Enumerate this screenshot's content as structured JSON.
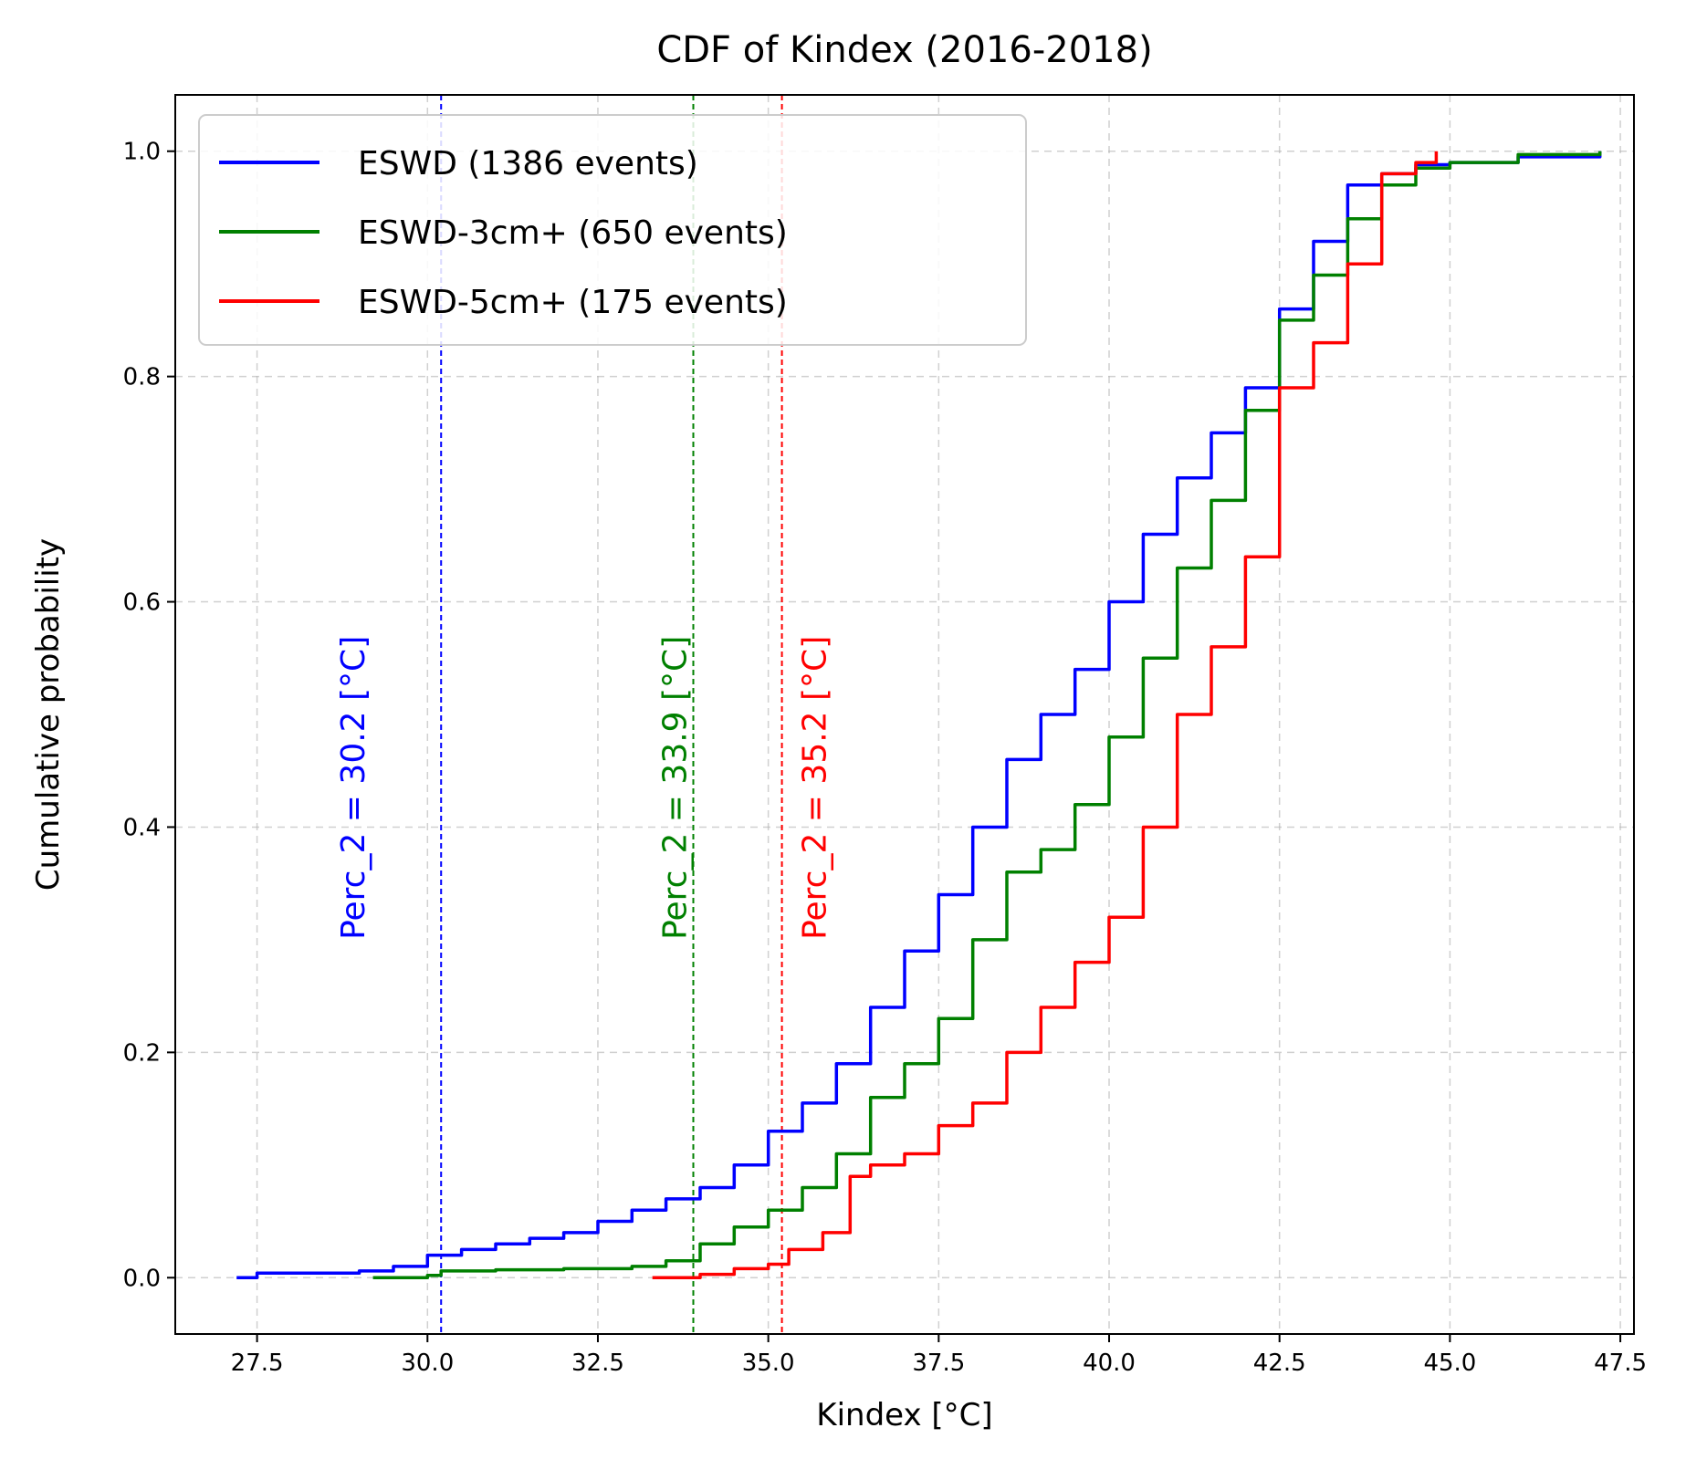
{
  "chart_data": {
    "type": "line",
    "title": "CDF of Kindex (2016-2018)",
    "xlabel": "Kindex [°C]",
    "ylabel": "Cumulative probability",
    "xlim": [
      26.3,
      47.7
    ],
    "ylim": [
      -0.05,
      1.05
    ],
    "xticks": [
      27.5,
      30.0,
      32.5,
      35.0,
      37.5,
      40.0,
      42.5,
      45.0,
      47.5
    ],
    "xtick_labels": [
      "27.5",
      "30.0",
      "32.5",
      "35.0",
      "37.5",
      "40.0",
      "42.5",
      "45.0",
      "47.5"
    ],
    "yticks": [
      0.0,
      0.2,
      0.4,
      0.6,
      0.8,
      1.0
    ],
    "ytick_labels": [
      "0.0",
      "0.2",
      "0.4",
      "0.6",
      "0.8",
      "1.0"
    ],
    "grid": true,
    "legend_position": "top-left",
    "series": [
      {
        "name": "ESWD (1386 events)",
        "color": "#0000ff",
        "x": [
          27.2,
          27.5,
          28.0,
          29.0,
          29.5,
          30.0,
          30.5,
          31.0,
          31.5,
          32.0,
          32.5,
          33.0,
          33.5,
          34.0,
          34.5,
          35.0,
          35.5,
          36.0,
          36.5,
          37.0,
          37.5,
          38.0,
          38.5,
          39.0,
          39.5,
          40.0,
          40.5,
          41.0,
          41.5,
          42.0,
          42.5,
          43.0,
          43.5,
          44.0,
          44.5,
          45.0,
          46.0,
          47.2
        ],
        "y": [
          0.0,
          0.004,
          0.004,
          0.006,
          0.01,
          0.02,
          0.025,
          0.03,
          0.035,
          0.04,
          0.05,
          0.06,
          0.07,
          0.08,
          0.1,
          0.13,
          0.155,
          0.19,
          0.24,
          0.29,
          0.34,
          0.4,
          0.46,
          0.5,
          0.54,
          0.6,
          0.66,
          0.71,
          0.75,
          0.79,
          0.86,
          0.92,
          0.97,
          0.98,
          0.988,
          0.99,
          0.995,
          1.0
        ]
      },
      {
        "name": "ESWD-3cm+ (650 events)",
        "color": "#008000",
        "x": [
          29.2,
          30.0,
          30.2,
          31.0,
          32.0,
          33.0,
          33.5,
          34.0,
          34.5,
          35.0,
          35.5,
          36.0,
          36.5,
          37.0,
          37.5,
          38.0,
          38.5,
          39.0,
          39.5,
          40.0,
          40.5,
          41.0,
          41.5,
          42.0,
          42.5,
          43.0,
          43.5,
          44.0,
          44.5,
          45.0,
          46.0,
          47.2
        ],
        "y": [
          0.0,
          0.002,
          0.006,
          0.007,
          0.008,
          0.01,
          0.015,
          0.03,
          0.045,
          0.06,
          0.08,
          0.11,
          0.16,
          0.19,
          0.23,
          0.3,
          0.36,
          0.38,
          0.42,
          0.48,
          0.55,
          0.63,
          0.69,
          0.77,
          0.85,
          0.89,
          0.94,
          0.97,
          0.985,
          0.99,
          0.997,
          1.0
        ]
      },
      {
        "name": "ESWD-5cm+ (175 events)",
        "color": "#ff0000",
        "x": [
          33.3,
          34.0,
          34.5,
          35.0,
          35.3,
          35.8,
          36.2,
          36.5,
          37.0,
          37.5,
          38.0,
          38.5,
          39.0,
          39.5,
          40.0,
          40.5,
          41.0,
          41.5,
          42.0,
          42.5,
          43.0,
          43.5,
          44.0,
          44.5,
          44.8
        ],
        "y": [
          0.0,
          0.003,
          0.008,
          0.012,
          0.025,
          0.04,
          0.09,
          0.1,
          0.11,
          0.135,
          0.155,
          0.2,
          0.24,
          0.28,
          0.32,
          0.4,
          0.5,
          0.56,
          0.64,
          0.79,
          0.83,
          0.9,
          0.98,
          0.99,
          1.0
        ]
      }
    ],
    "vlines": [
      {
        "x": 30.2,
        "color": "#0000ff",
        "label": "Perc_2 = 30.2 [°C]"
      },
      {
        "x": 33.9,
        "color": "#008000",
        "label": "Perc_2 = 33.9 [°C]"
      },
      {
        "x": 35.2,
        "color": "#ff0000",
        "label": "Perc_2 = 35.2 [°C]"
      }
    ]
  }
}
